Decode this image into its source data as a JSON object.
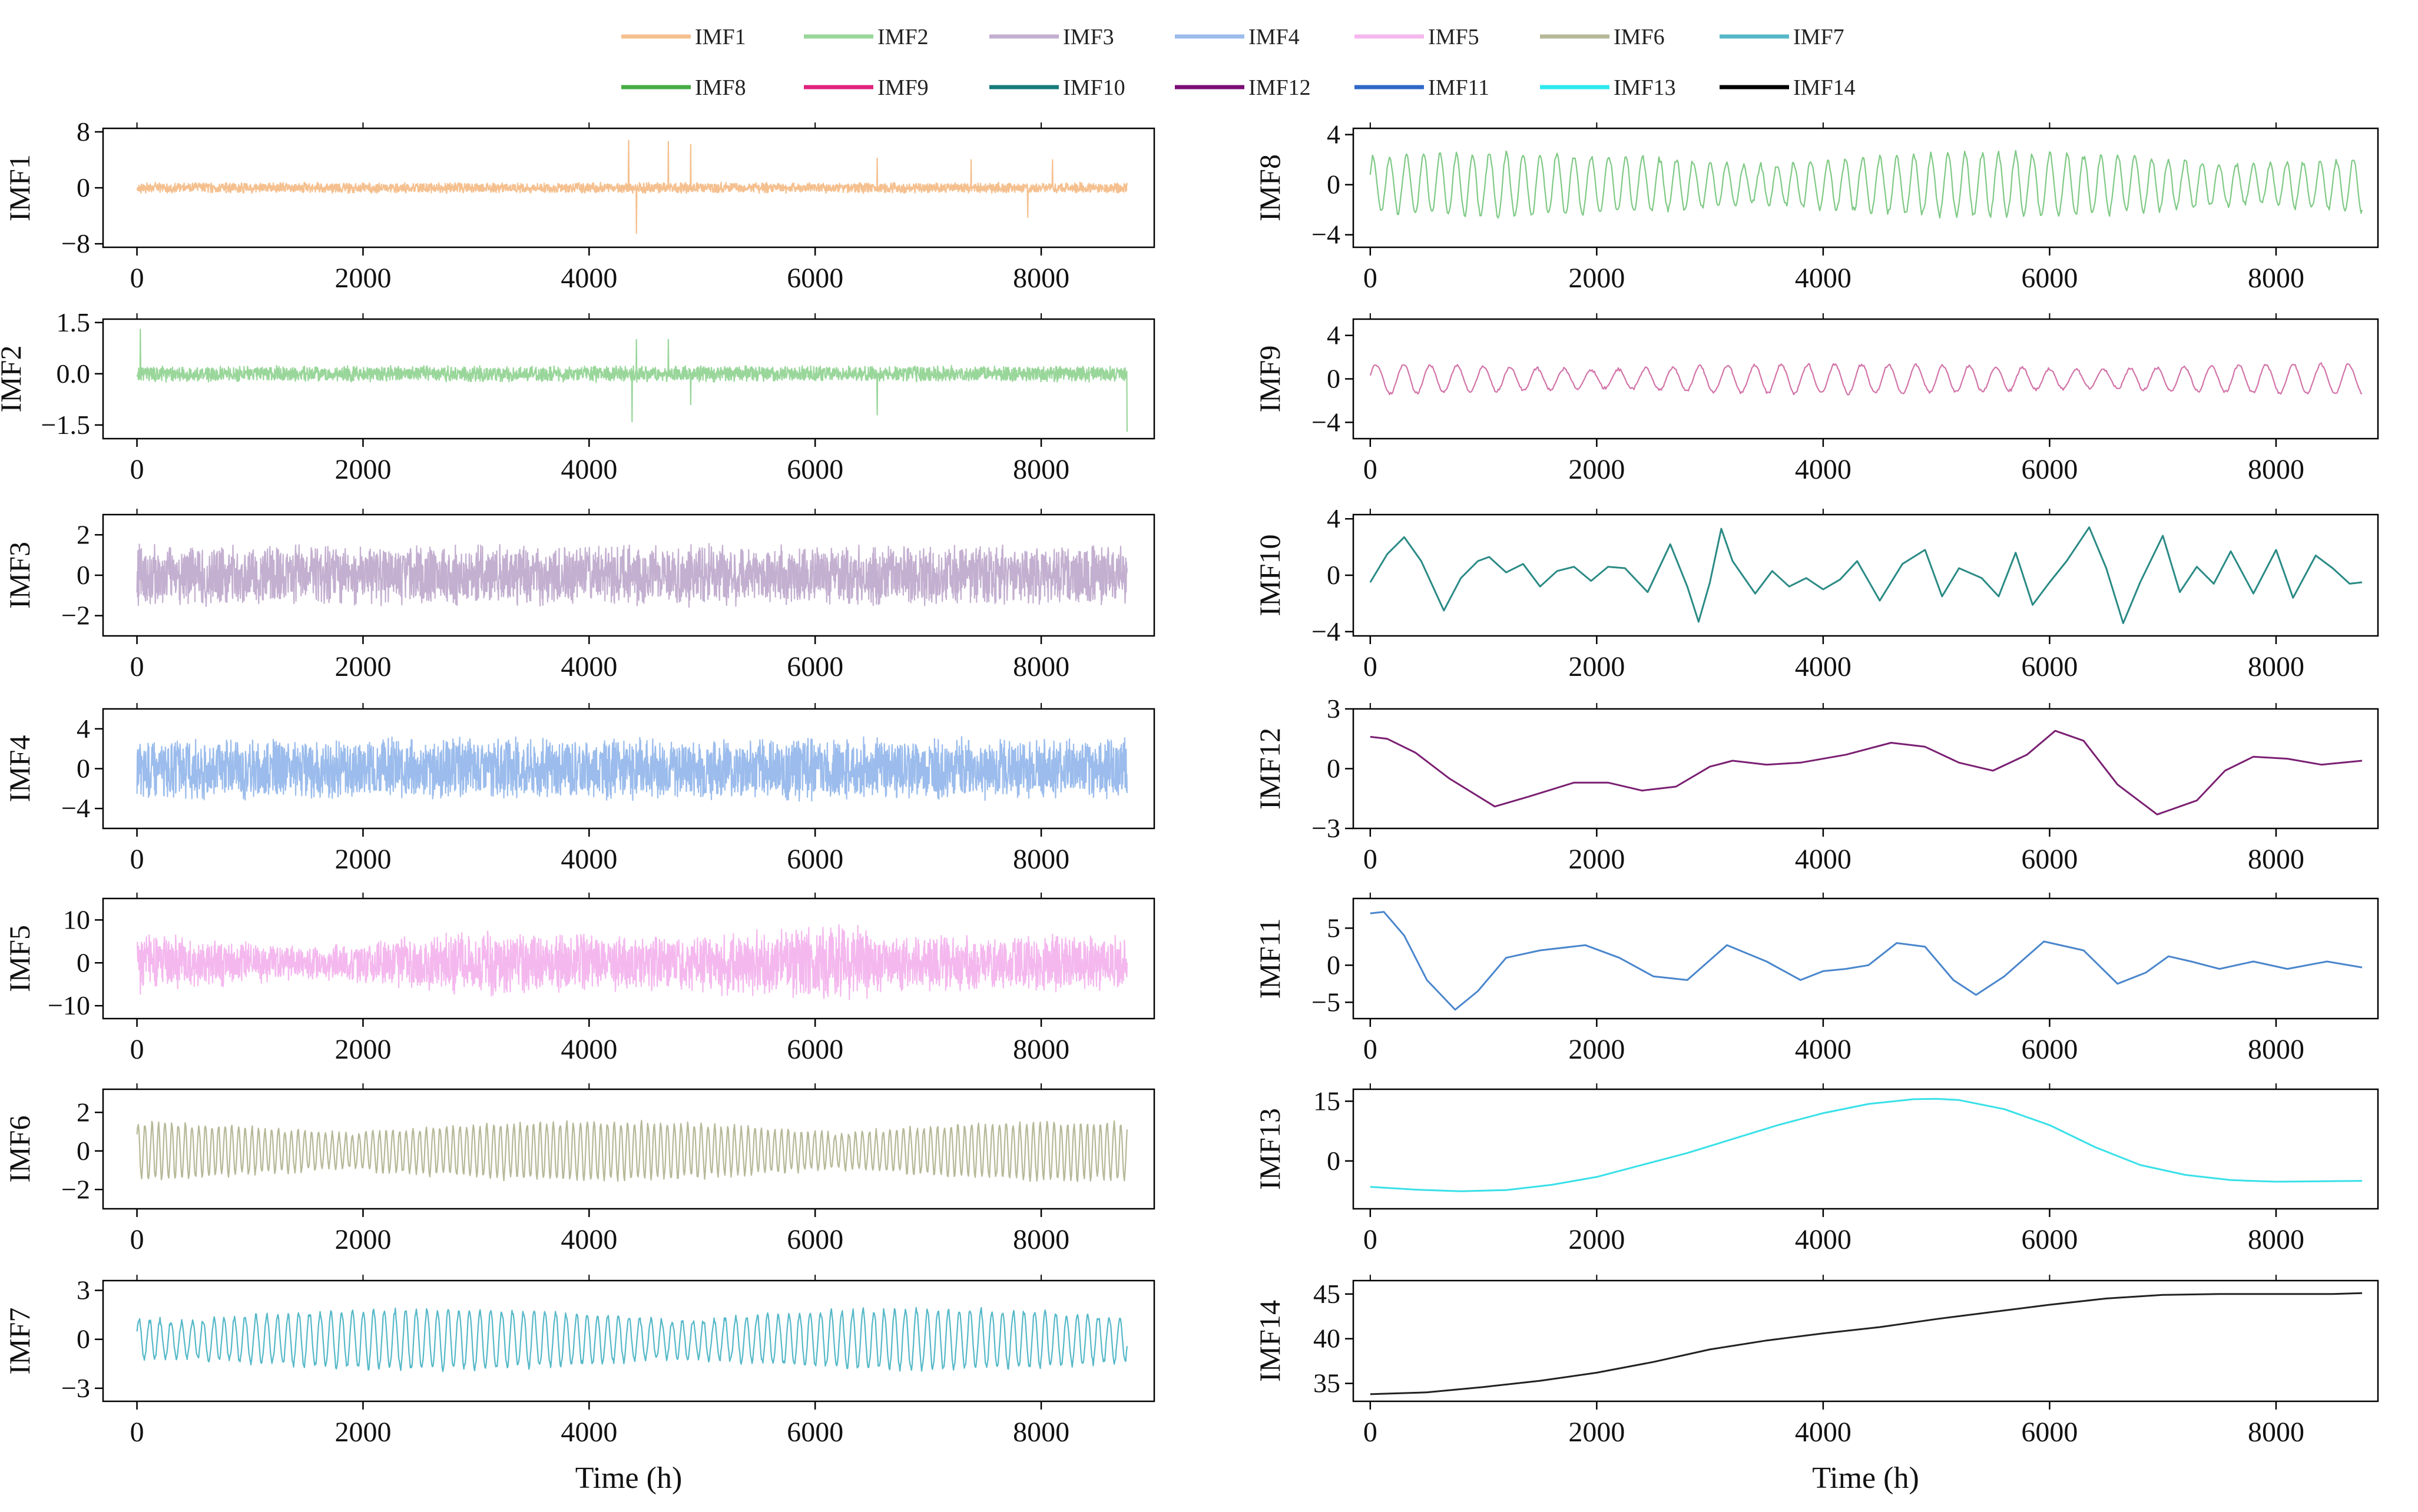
{
  "legend": {
    "entries": [
      {
        "label": "IMF1",
        "color": "#f5c08f"
      },
      {
        "label": "IMF2",
        "color": "#99d69a"
      },
      {
        "label": "IMF3",
        "color": "#c3afd0"
      },
      {
        "label": "IMF4",
        "color": "#9bbcec"
      },
      {
        "label": "IMF5",
        "color": "#f4b8ee"
      },
      {
        "label": "IMF6",
        "color": "#b6b897"
      },
      {
        "label": "IMF7",
        "color": "#55b8c8"
      },
      {
        "label": "IMF8",
        "color": "#45ad45"
      },
      {
        "label": "IMF9",
        "color": "#e0237e"
      },
      {
        "label": "IMF10",
        "color": "#177b7b"
      },
      {
        "label": "IMF12",
        "color": "#7a0d74"
      },
      {
        "label": "IMF11",
        "color": "#2f67c8"
      },
      {
        "label": "IMF13",
        "color": "#2ee8ef"
      },
      {
        "label": "IMF14",
        "color": "#000000"
      }
    ]
  },
  "chart_data": [
    {
      "type": "line",
      "name": "IMF1",
      "ylabel": "IMF1",
      "color": "#f5c08f",
      "yticks": [
        "8",
        "0",
        "−8"
      ],
      "ylim": [
        -8.5,
        8.5
      ],
      "yticks_values": [
        8,
        0,
        -8
      ],
      "xlim": [
        -300,
        9000
      ],
      "xticks": [
        0,
        2000,
        4000,
        6000,
        8000
      ],
      "xticklabels": [
        "0",
        "2000",
        "4000",
        "6000",
        "8000"
      ],
      "xlabel": "",
      "kind": "spiky_noise",
      "amplitude": 0.8,
      "spikes": [
        [
          4350,
          6.8
        ],
        [
          4420,
          -6.5
        ],
        [
          4700,
          6.6
        ],
        [
          4900,
          6.2
        ],
        [
          6550,
          4.2
        ],
        [
          7380,
          4.0
        ],
        [
          7880,
          -4.2
        ],
        [
          8100,
          4.0
        ]
      ]
    },
    {
      "type": "line",
      "name": "IMF2",
      "ylabel": "IMF2",
      "color": "#99d69a",
      "yticks": [
        "1.5",
        "0.0",
        "−1.5"
      ],
      "ylim": [
        -1.9,
        1.6
      ],
      "yticks_values": [
        1.5,
        0,
        -1.5
      ],
      "xlim": [
        -300,
        9000
      ],
      "xticks": [
        0,
        2000,
        4000,
        6000,
        8000
      ],
      "xticklabels": [
        "0",
        "2000",
        "4000",
        "6000",
        "8000"
      ],
      "xlabel": "",
      "kind": "spiky_noise",
      "amplitude": 0.25,
      "spikes": [
        [
          4380,
          -1.4
        ],
        [
          4420,
          1.0
        ],
        [
          4700,
          1.0
        ],
        [
          4900,
          -0.9
        ],
        [
          6550,
          -1.2
        ],
        [
          8760,
          -1.7
        ],
        [
          30,
          1.3
        ]
      ]
    },
    {
      "type": "line",
      "name": "IMF3",
      "ylabel": "IMF3",
      "color": "#c3afd0",
      "yticks": [
        "2",
        "0",
        "−2"
      ],
      "ylim": [
        -3.0,
        3.0
      ],
      "yticks_values": [
        2,
        0,
        -2
      ],
      "xlim": [
        -300,
        9000
      ],
      "xticks": [
        0,
        2000,
        4000,
        6000,
        8000
      ],
      "xticklabels": [
        "0",
        "2000",
        "4000",
        "6000",
        "8000"
      ],
      "xlabel": "",
      "kind": "dense",
      "amplitude": 1.6
    },
    {
      "type": "line",
      "name": "IMF4",
      "ylabel": "IMF4",
      "color": "#9bbcec",
      "yticks": [
        "4",
        "0",
        "−4"
      ],
      "ylim": [
        -6.0,
        6.0
      ],
      "yticks_values": [
        4,
        0,
        -4
      ],
      "xlim": [
        -300,
        9000
      ],
      "xticks": [
        0,
        2000,
        4000,
        6000,
        8000
      ],
      "xticklabels": [
        "0",
        "2000",
        "4000",
        "6000",
        "8000"
      ],
      "xlabel": "",
      "kind": "dense",
      "amplitude": 3.3
    },
    {
      "type": "line",
      "name": "IMF5",
      "ylabel": "IMF5",
      "color": "#f4b8ee",
      "yticks": [
        "10",
        "0",
        "−10"
      ],
      "ylim": [
        -13,
        15
      ],
      "yticks_values": [
        10,
        0,
        -10
      ],
      "xlim": [
        -300,
        9000
      ],
      "xticks": [
        0,
        2000,
        4000,
        6000,
        8000
      ],
      "xticklabels": [
        "0",
        "2000",
        "4000",
        "6000",
        "8000"
      ],
      "xlabel": "",
      "kind": "dense_envelope",
      "amplitude": 10
    },
    {
      "type": "line",
      "name": "IMF6",
      "ylabel": "IMF6",
      "color": "#b6b897",
      "yticks": [
        "2",
        "0",
        "−2"
      ],
      "ylim": [
        -3.0,
        3.2
      ],
      "yticks_values": [
        2,
        0,
        -2
      ],
      "xlim": [
        -300,
        9000
      ],
      "xticks": [
        0,
        2000,
        4000,
        6000,
        8000
      ],
      "xticklabels": [
        "0",
        "2000",
        "4000",
        "6000",
        "8000"
      ],
      "xlabel": "",
      "kind": "medium",
      "amplitude": 1.3,
      "period": 60
    },
    {
      "type": "line",
      "name": "IMF7",
      "ylabel": "IMF7",
      "color": "#55b8c8",
      "yticks": [
        "3",
        "0",
        "−3"
      ],
      "ylim": [
        -3.8,
        3.6
      ],
      "yticks_values": [
        3,
        0,
        -3
      ],
      "xlim": [
        -300,
        9000
      ],
      "xticks": [
        0,
        2000,
        4000,
        6000,
        8000
      ],
      "xticklabels": [
        "0",
        "2000",
        "4000",
        "6000",
        "8000"
      ],
      "xlabel": "Time (h)",
      "kind": "medium",
      "amplitude": 1.6,
      "period": 95
    },
    {
      "type": "line",
      "name": "IMF8",
      "ylabel": "IMF8",
      "color": "#7fc985",
      "yticks": [
        "4",
        "0",
        "−4"
      ],
      "ylim": [
        -5.0,
        4.5
      ],
      "yticks_values": [
        4,
        0,
        -4
      ],
      "xlim": [
        -150,
        8900
      ],
      "xticks": [
        0,
        2000,
        4000,
        6000,
        8000
      ],
      "xticklabels": [
        "0",
        "2000",
        "4000",
        "6000",
        "8000"
      ],
      "xlabel": "",
      "kind": "osc",
      "amplitude": 2.2,
      "period": 150
    },
    {
      "type": "line",
      "name": "IMF9",
      "ylabel": "IMF9",
      "color": "#d274a8",
      "yticks": [
        "4",
        "0",
        "−4"
      ],
      "ylim": [
        -5.5,
        5.5
      ],
      "yticks_values": [
        4,
        0,
        -4
      ],
      "xlim": [
        -150,
        8900
      ],
      "xticks": [
        0,
        2000,
        4000,
        6000,
        8000
      ],
      "xticklabels": [
        "0",
        "2000",
        "4000",
        "6000",
        "8000"
      ],
      "xlabel": "",
      "kind": "osc",
      "amplitude": 1.2,
      "period": 240
    },
    {
      "type": "line",
      "name": "IMF10",
      "ylabel": "IMF10",
      "color": "#2a8a85",
      "yticks": [
        "4",
        "0",
        "−4"
      ],
      "ylim": [
        -4.3,
        4.3
      ],
      "yticks_values": [
        4,
        0,
        -4
      ],
      "xlim": [
        -150,
        8900
      ],
      "xticks": [
        0,
        2000,
        4000,
        6000,
        8000
      ],
      "xticklabels": [
        "0",
        "2000",
        "4000",
        "6000",
        "8000"
      ],
      "xlabel": "",
      "kind": "points",
      "x": [
        0,
        150,
        300,
        450,
        650,
        800,
        950,
        1050,
        1200,
        1350,
        1500,
        1650,
        1800,
        1950,
        2100,
        2250,
        2450,
        2650,
        2800,
        2900,
        3000,
        3100,
        3200,
        3400,
        3550,
        3700,
        3850,
        4000,
        4150,
        4300,
        4500,
        4700,
        4900,
        5050,
        5200,
        5400,
        5550,
        5700,
        5850,
        6000,
        6150,
        6350,
        6500,
        6650,
        6800,
        7000,
        7150,
        7300,
        7450,
        7600,
        7800,
        8000,
        8150,
        8350,
        8500,
        8650,
        8760
      ],
      "y": [
        -0.5,
        1.5,
        2.7,
        1.0,
        -2.5,
        -0.2,
        1.0,
        1.3,
        0.2,
        0.8,
        -0.8,
        0.3,
        0.6,
        -0.4,
        0.6,
        0.5,
        -1.2,
        2.2,
        -0.8,
        -3.3,
        -0.5,
        3.3,
        1.0,
        -1.3,
        0.3,
        -0.8,
        -0.2,
        -1.0,
        -0.3,
        1.0,
        -1.8,
        0.8,
        1.8,
        -1.5,
        0.5,
        -0.2,
        -1.5,
        1.6,
        -2.1,
        -0.5,
        1.0,
        3.4,
        0.5,
        -3.4,
        -0.5,
        2.8,
        -1.2,
        0.6,
        -0.6,
        1.7,
        -1.3,
        1.8,
        -1.6,
        1.4,
        0.5,
        -0.6,
        -0.5
      ]
    },
    {
      "type": "line",
      "name": "IMF12",
      "ylabel": "IMF12",
      "color": "#7a1f72",
      "yticks": [
        "3",
        "0",
        "−3"
      ],
      "ylim": [
        -3,
        3
      ],
      "yticks_values": [
        3,
        0,
        -3
      ],
      "xlim": [
        -150,
        8900
      ],
      "xticks": [
        0,
        2000,
        4000,
        6000,
        8000
      ],
      "xticklabels": [
        "0",
        "2000",
        "4000",
        "6000",
        "8000"
      ],
      "xlabel": "",
      "kind": "points",
      "x": [
        0,
        150,
        400,
        700,
        1100,
        1400,
        1800,
        2100,
        2400,
        2700,
        3000,
        3200,
        3500,
        3800,
        4200,
        4600,
        4900,
        5200,
        5500,
        5800,
        6050,
        6300,
        6600,
        6950,
        7300,
        7550,
        7800,
        8100,
        8400,
        8760
      ],
      "y": [
        1.6,
        1.5,
        0.8,
        -0.5,
        -1.9,
        -1.4,
        -0.7,
        -0.7,
        -1.1,
        -0.9,
        0.1,
        0.4,
        0.2,
        0.3,
        0.7,
        1.3,
        1.1,
        0.3,
        -0.1,
        0.7,
        1.9,
        1.4,
        -0.8,
        -2.3,
        -1.6,
        -0.1,
        0.6,
        0.5,
        0.2,
        0.4
      ]
    },
    {
      "type": "line",
      "name": "IMF11",
      "ylabel": "IMF11",
      "color": "#4a86cc",
      "yticks": [
        "5",
        "0",
        "−5"
      ],
      "ylim": [
        -7.2,
        9.0
      ],
      "yticks_values": [
        5,
        0,
        -5
      ],
      "xlim": [
        -150,
        8900
      ],
      "xticks": [
        0,
        2000,
        4000,
        6000,
        8000
      ],
      "xticklabels": [
        "0",
        "2000",
        "4000",
        "6000",
        "8000"
      ],
      "xlabel": "",
      "kind": "points",
      "x": [
        0,
        120,
        300,
        500,
        750,
        950,
        1200,
        1500,
        1900,
        2200,
        2500,
        2800,
        3150,
        3500,
        3800,
        4000,
        4200,
        4400,
        4650,
        4900,
        5150,
        5350,
        5600,
        5950,
        6300,
        6600,
        6850,
        7050,
        7250,
        7500,
        7800,
        8100,
        8450,
        8760
      ],
      "y": [
        7.0,
        7.2,
        4.0,
        -2.0,
        -6.0,
        -3.5,
        1.0,
        2.0,
        2.7,
        1.0,
        -1.5,
        -2.0,
        2.7,
        0.5,
        -2.0,
        -0.8,
        -0.5,
        0.0,
        3.0,
        2.5,
        -2.0,
        -4.0,
        -1.5,
        3.2,
        2.0,
        -2.5,
        -1.0,
        1.2,
        0.5,
        -0.5,
        0.5,
        -0.5,
        0.5,
        -0.3
      ]
    },
    {
      "type": "line",
      "name": "IMF13",
      "ylabel": "IMF13",
      "color": "#39e0e8",
      "yticks": [
        "15",
        "0"
      ],
      "ylim": [
        -12,
        18
      ],
      "yticks_values": [
        15,
        0
      ],
      "xlim": [
        -150,
        8900
      ],
      "xticks": [
        0,
        2000,
        4000,
        6000,
        8000
      ],
      "xticklabels": [
        "0",
        "2000",
        "4000",
        "6000",
        "8000"
      ],
      "xlabel": "",
      "kind": "points",
      "x": [
        0,
        400,
        800,
        1200,
        1600,
        2000,
        2400,
        2800,
        3200,
        3600,
        4000,
        4400,
        4800,
        5000,
        5200,
        5600,
        6000,
        6400,
        6800,
        7200,
        7600,
        8000,
        8400,
        8760
      ],
      "y": [
        -6.5,
        -7.2,
        -7.6,
        -7.3,
        -6.0,
        -4.0,
        -1.0,
        2.0,
        5.5,
        9.0,
        12.0,
        14.3,
        15.5,
        15.6,
        15.3,
        13.0,
        9.0,
        3.5,
        -1.0,
        -3.5,
        -4.8,
        -5.2,
        -5.1,
        -5.0
      ]
    },
    {
      "type": "line",
      "name": "IMF14",
      "ylabel": "IMF14",
      "color": "#222222",
      "yticks": [
        "45",
        "40",
        "35"
      ],
      "ylim": [
        33,
        46.5
      ],
      "yticks_values": [
        45,
        40,
        35
      ],
      "xlim": [
        -150,
        8900
      ],
      "xticks": [
        0,
        2000,
        4000,
        6000,
        8000
      ],
      "xticklabels": [
        "0",
        "2000",
        "4000",
        "6000",
        "8000"
      ],
      "xlabel": "Time (h)",
      "kind": "points",
      "x": [
        0,
        500,
        1000,
        1500,
        2000,
        2500,
        3000,
        3500,
        4000,
        4500,
        5000,
        5500,
        6000,
        6500,
        7000,
        7500,
        8000,
        8500,
        8760
      ],
      "y": [
        33.8,
        34.0,
        34.6,
        35.3,
        36.2,
        37.4,
        38.8,
        39.8,
        40.6,
        41.3,
        42.2,
        43.0,
        43.8,
        44.5,
        44.9,
        45.0,
        45.0,
        45.0,
        45.1
      ]
    }
  ]
}
